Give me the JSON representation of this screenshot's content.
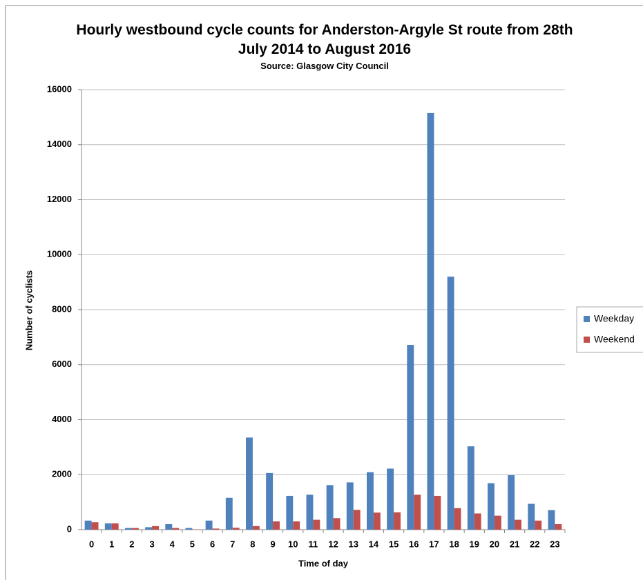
{
  "chart_data": {
    "type": "bar",
    "title": "Hourly westbound cycle counts for Anderston-Argyle St route from 28th July 2014 to August 2016",
    "subtitle": "Source: Glasgow City Council",
    "x_label": "Time of day",
    "y_label": "Number of cyclists",
    "categories": [
      "0",
      "1",
      "2",
      "3",
      "4",
      "5",
      "6",
      "7",
      "8",
      "9",
      "10",
      "11",
      "12",
      "13",
      "14",
      "15",
      "16",
      "17",
      "18",
      "19",
      "20",
      "21",
      "22",
      "23"
    ],
    "series": [
      {
        "name": "Weekday",
        "color": "#4f81bd",
        "values": [
          330,
          230,
          60,
          90,
          200,
          60,
          330,
          1160,
          3350,
          2060,
          1230,
          1270,
          1620,
          1720,
          2090,
          2220,
          6720,
          15150,
          9200,
          3030,
          1690,
          1980,
          940,
          710
        ]
      },
      {
        "name": "Weekend",
        "color": "#c0504d",
        "values": [
          270,
          230,
          60,
          130,
          60,
          10,
          40,
          70,
          130,
          300,
          300,
          360,
          420,
          720,
          620,
          630,
          1270,
          1230,
          780,
          590,
          510,
          360,
          330,
          200
        ]
      }
    ],
    "ylim": [
      0,
      16000
    ],
    "yticks": [
      0,
      2000,
      4000,
      6000,
      8000,
      10000,
      12000,
      14000,
      16000
    ],
    "grid": true,
    "legend": "right"
  }
}
